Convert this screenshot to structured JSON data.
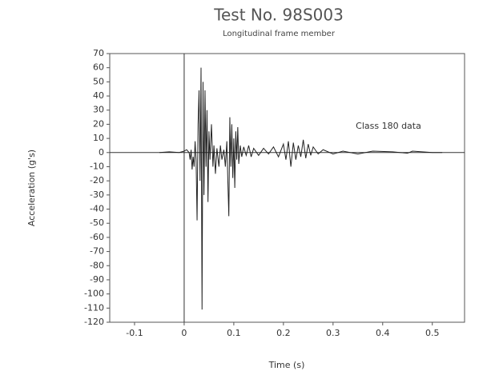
{
  "chart_data": {
    "type": "line",
    "title": "Test No. 98S003",
    "subtitle": "Longitudinal frame member",
    "x_label": "Time (s)",
    "y_label": "Acceleration (g's)",
    "annotation": "Class 180 data",
    "color": "#222",
    "xlim": [
      -0.15,
      0.565
    ],
    "xticks": [
      -0.1,
      0,
      0.1,
      0.2,
      0.3,
      0.4,
      0.5
    ],
    "ylim": [
      -120,
      70
    ],
    "yticks": [
      70,
      60,
      50,
      40,
      30,
      20,
      10,
      0,
      -10,
      -20,
      -30,
      -40,
      -50,
      -60,
      -70,
      -80,
      -90,
      -100,
      -110,
      -120
    ],
    "x": [
      -0.05,
      -0.03,
      -0.01,
      0,
      0.005,
      0.01,
      0.012,
      0.014,
      0.016,
      0.018,
      0.02,
      0.022,
      0.024,
      0.026,
      0.028,
      0.03,
      0.032,
      0.034,
      0.036,
      0.038,
      0.04,
      0.042,
      0.044,
      0.046,
      0.048,
      0.05,
      0.052,
      0.055,
      0.058,
      0.06,
      0.063,
      0.066,
      0.07,
      0.073,
      0.076,
      0.08,
      0.083,
      0.086,
      0.088,
      0.09,
      0.092,
      0.094,
      0.096,
      0.098,
      0.1,
      0.102,
      0.104,
      0.106,
      0.108,
      0.11,
      0.113,
      0.116,
      0.12,
      0.125,
      0.13,
      0.135,
      0.14,
      0.15,
      0.16,
      0.17,
      0.18,
      0.19,
      0.2,
      0.205,
      0.21,
      0.215,
      0.22,
      0.225,
      0.23,
      0.235,
      0.24,
      0.245,
      0.25,
      0.255,
      0.26,
      0.27,
      0.28,
      0.3,
      0.32,
      0.35,
      0.38,
      0.42,
      0.45,
      0.46,
      0.5,
      0.52
    ],
    "values": [
      0,
      0.5,
      0,
      1,
      2,
      0,
      -5,
      2,
      -12,
      -3,
      -10,
      8,
      -5,
      -48,
      20,
      44,
      -20,
      60,
      -111,
      50,
      -30,
      44,
      -10,
      30,
      -35,
      15,
      -5,
      20,
      -10,
      5,
      -15,
      3,
      -10,
      5,
      -5,
      2,
      -10,
      8,
      -20,
      -45,
      25,
      -10,
      20,
      -18,
      10,
      -25,
      15,
      -5,
      18,
      -8,
      5,
      -3,
      4,
      -2,
      5,
      -3,
      3,
      -2,
      3,
      -1,
      4,
      -3,
      6,
      -5,
      8,
      -10,
      7,
      -5,
      5,
      -3,
      9,
      -4,
      6,
      -2,
      4,
      -1,
      2,
      -1,
      1,
      -1,
      1,
      0.5,
      -0.5,
      1,
      0,
      0
    ]
  }
}
